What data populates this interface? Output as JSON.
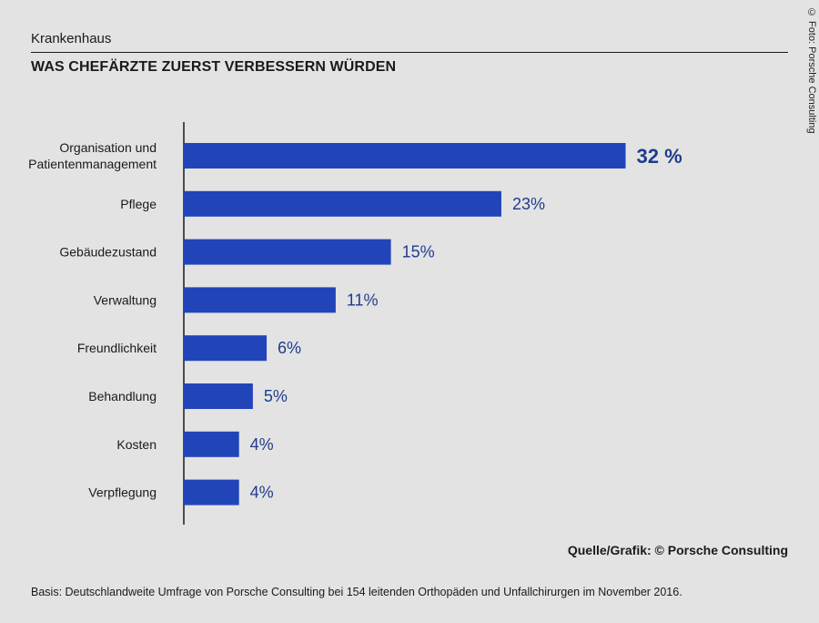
{
  "header": {
    "category": "Krankenhaus",
    "title": "WAS CHEFÄRZTE ZUERST VERBESSERN WÜRDEN"
  },
  "photo_credit": "© Foto: Porsche Consulting",
  "chart_data": {
    "type": "bar",
    "orientation": "horizontal",
    "title": "WAS CHEFÄRZTE ZUERST VERBESSERN WÜRDEN",
    "categories": [
      [
        "Organisation und",
        "Patientenmanagement"
      ],
      [
        "Pflege"
      ],
      [
        "Gebäudezustand"
      ],
      [
        "Verwaltung"
      ],
      [
        "Freundlichkeit"
      ],
      [
        "Behandlung"
      ],
      [
        "Kosten"
      ],
      [
        "Verpflegung"
      ]
    ],
    "values": [
      32,
      23,
      15,
      11,
      6,
      5,
      4,
      4
    ],
    "value_labels": [
      "32 %",
      "23%",
      "15%",
      "11%",
      "6%",
      "5%",
      "4%",
      "4%"
    ],
    "unit": "%",
    "xlim": [
      0,
      35
    ],
    "bar_color": "#2145b8",
    "label_color": "#1f3c8c",
    "grid": false
  },
  "footer": {
    "source": "Quelle/Grafik: © Porsche Consulting",
    "basis": "Basis: Deutschlandweite Umfrage von Porsche Consulting bei 154 leitenden Orthopäden und Unfallchirurgen im November 2016."
  }
}
